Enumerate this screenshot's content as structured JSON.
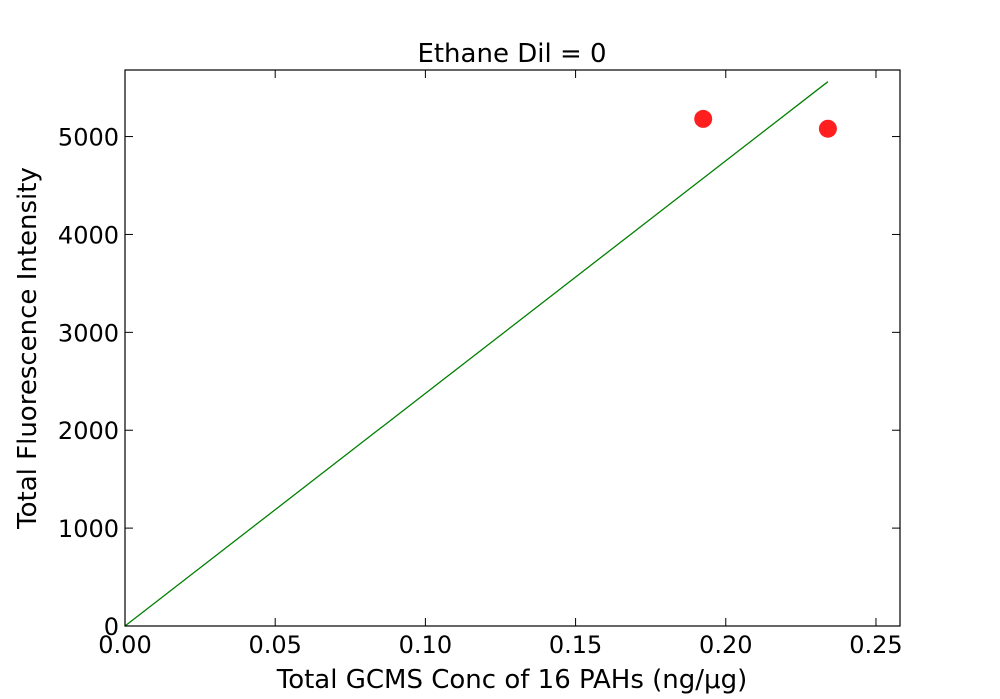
{
  "chart_data": {
    "type": "scatter",
    "title": "Ethane Dil = 0",
    "xlabel": "Total GCMS Conc of 16 PAHs (ng/μg)",
    "ylabel": "Total Fluorescence Intensity",
    "xlim": [
      0.0,
      0.258
    ],
    "ylim": [
      0,
      5680
    ],
    "x_ticks": [
      0.0,
      0.05,
      0.1,
      0.15,
      0.2,
      0.25
    ],
    "x_tick_labels": [
      "0.00",
      "0.05",
      "0.10",
      "0.15",
      "0.20",
      "0.25"
    ],
    "y_ticks": [
      0,
      1000,
      2000,
      3000,
      4000,
      5000
    ],
    "y_tick_labels": [
      "0",
      "1000",
      "2000",
      "3000",
      "4000",
      "5000"
    ],
    "grid": false,
    "series": [
      {
        "kind": "scatter",
        "color": "#ff0000",
        "points": [
          {
            "x": 0.1925,
            "y": 5180
          },
          {
            "x": 0.234,
            "y": 5080
          }
        ]
      },
      {
        "kind": "line",
        "color": "#008000",
        "points": [
          {
            "x": 0.0,
            "y": 0
          },
          {
            "x": 0.234,
            "y": 5560
          }
        ]
      }
    ]
  }
}
